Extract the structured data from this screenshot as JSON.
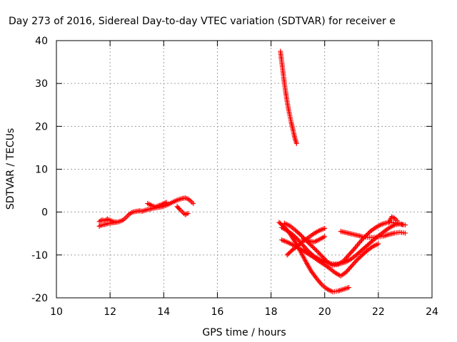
{
  "chart_data": {
    "type": "scatter",
    "title": "Day 273 of 2016, Sidereal Day-to-day VTEC variation (SDTVAR) for receiver e",
    "xlabel": "GPS time / hours",
    "ylabel": "SDTVAR / TECUs",
    "xlim": [
      10,
      24
    ],
    "ylim": [
      -20,
      40
    ],
    "xticks": [
      "10",
      "12",
      "14",
      "16",
      "18",
      "20",
      "22",
      "24"
    ],
    "yticks": [
      "-20",
      "-10",
      "0",
      "10",
      "20",
      "30",
      "40"
    ],
    "grid": true,
    "marker": "plus",
    "color": "#ff0000",
    "series": [
      {
        "x": [
          11.6,
          11.7,
          11.8,
          11.9,
          12.0,
          12.1,
          12.2,
          12.3,
          12.4,
          12.5,
          12.6,
          12.7,
          12.8,
          12.9,
          13.0,
          13.1,
          13.2,
          13.3,
          13.4,
          13.5,
          13.6,
          13.7,
          13.8,
          13.9,
          14.0,
          14.1,
          14.2,
          14.3,
          14.4,
          14.5,
          14.6,
          14.7,
          14.8,
          14.9,
          15.0,
          15.1
        ],
        "y": [
          -3.3,
          -3.0,
          -2.9,
          -2.7,
          -2.6,
          -2.5,
          -2.4,
          -2.3,
          -2.1,
          -1.8,
          -1.2,
          -0.6,
          -0.1,
          0.1,
          0.2,
          0.3,
          0.2,
          0.4,
          0.6,
          0.7,
          0.9,
          1.0,
          1.1,
          1.2,
          1.4,
          1.6,
          1.9,
          2.2,
          2.5,
          2.8,
          3.0,
          3.2,
          3.3,
          3.1,
          2.6,
          2.0
        ]
      },
      {
        "x": [
          11.6,
          11.7,
          11.8,
          11.9,
          12.0,
          12.1,
          12.2
        ],
        "y": [
          -2.2,
          -1.8,
          -2.0,
          -1.6,
          -1.9,
          -2.2,
          -2.3
        ]
      },
      {
        "x": [
          13.4,
          13.5,
          13.6,
          13.7,
          13.8,
          13.9,
          14.0,
          14.1
        ],
        "y": [
          2.0,
          1.7,
          1.4,
          1.2,
          1.5,
          1.7,
          2.0,
          2.3
        ]
      },
      {
        "x": [
          14.5,
          14.6,
          14.7,
          14.8,
          14.9
        ],
        "y": [
          1.3,
          0.6,
          0.0,
          -0.6,
          -0.3
        ]
      },
      {
        "x": [
          18.35,
          18.4,
          18.45,
          18.5,
          18.55,
          18.6,
          18.65,
          18.7,
          18.75,
          18.8,
          18.85,
          18.9,
          18.95
        ],
        "y": [
          37.5,
          35.0,
          32.5,
          30.0,
          27.8,
          25.8,
          24.0,
          22.5,
          21.0,
          19.7,
          18.3,
          17.0,
          16.0
        ]
      },
      {
        "x": [
          18.3,
          18.5,
          18.7,
          18.9,
          19.1,
          19.3,
          19.5,
          19.7,
          19.9,
          20.1,
          20.3,
          20.5,
          20.7,
          20.9
        ],
        "y": [
          -2.4,
          -3.5,
          -5.0,
          -7.0,
          -9.2,
          -11.6,
          -13.8,
          -15.5,
          -17.0,
          -18.0,
          -18.6,
          -18.4,
          -18.0,
          -17.6
        ]
      },
      {
        "x": [
          18.4,
          18.6,
          18.8,
          19.0,
          19.2,
          19.4,
          19.6,
          19.8,
          20.0,
          20.2,
          20.4,
          20.6,
          20.8,
          21.0,
          21.2,
          21.4,
          21.6,
          21.8,
          22.0,
          22.2,
          22.4,
          22.6,
          22.8,
          23.0
        ],
        "y": [
          -3.6,
          -4.3,
          -5.2,
          -6.4,
          -7.8,
          -9.2,
          -10.3,
          -11.0,
          -11.6,
          -12.0,
          -12.1,
          -12.0,
          -11.6,
          -10.9,
          -9.9,
          -8.8,
          -7.7,
          -6.6,
          -5.6,
          -4.6,
          -3.7,
          -3.0,
          -2.8,
          -3.0
        ]
      },
      {
        "x": [
          18.5,
          18.7,
          18.9,
          19.1,
          19.3,
          19.5,
          19.7,
          19.9,
          20.1,
          20.3,
          20.5,
          20.7,
          20.9,
          21.1,
          21.3,
          21.5,
          21.7,
          21.9,
          22.1,
          22.3,
          22.5,
          22.7,
          22.9
        ],
        "y": [
          -2.6,
          -3.2,
          -4.2,
          -5.3,
          -6.6,
          -7.8,
          -9.0,
          -10.3,
          -11.6,
          -12.4,
          -12.2,
          -11.4,
          -10.0,
          -8.6,
          -7.1,
          -5.7,
          -4.5,
          -3.6,
          -2.9,
          -2.5,
          -2.4,
          -2.6,
          -2.9
        ]
      },
      {
        "x": [
          18.6,
          18.8,
          19.0,
          19.2,
          19.4,
          19.6,
          19.8,
          20.0
        ],
        "y": [
          -10.0,
          -8.8,
          -7.9,
          -6.8,
          -5.9,
          -5.0,
          -4.3,
          -3.8
        ]
      },
      {
        "x": [
          18.4,
          18.6,
          18.8,
          19.0,
          19.2,
          19.4,
          19.6,
          19.8,
          20.0,
          20.2,
          20.4,
          20.6,
          20.8,
          21.0,
          21.2,
          21.4,
          21.6,
          21.8,
          22.0
        ],
        "y": [
          -6.5,
          -7.0,
          -7.6,
          -8.3,
          -9.0,
          -9.8,
          -10.6,
          -11.5,
          -12.3,
          -13.2,
          -14.2,
          -14.9,
          -14.0,
          -12.6,
          -11.2,
          -10.0,
          -8.9,
          -8.0,
          -7.4
        ]
      },
      {
        "x": [
          19.2,
          19.4,
          19.6,
          19.8,
          20.0
        ],
        "y": [
          -6.3,
          -6.7,
          -7.0,
          -6.4,
          -5.7
        ]
      },
      {
        "x": [
          20.6,
          20.8,
          21.0,
          21.2,
          21.4,
          21.6,
          21.8,
          22.0,
          22.2,
          22.4,
          22.6,
          22.8,
          23.0
        ],
        "y": [
          -4.5,
          -4.8,
          -5.1,
          -5.4,
          -5.7,
          -5.9,
          -5.9,
          -5.8,
          -5.6,
          -5.2,
          -4.9,
          -4.7,
          -4.9
        ]
      },
      {
        "x": [
          22.4,
          22.5,
          22.6,
          22.7
        ],
        "y": [
          -2.2,
          -1.1,
          -1.4,
          -2.0
        ]
      }
    ]
  }
}
